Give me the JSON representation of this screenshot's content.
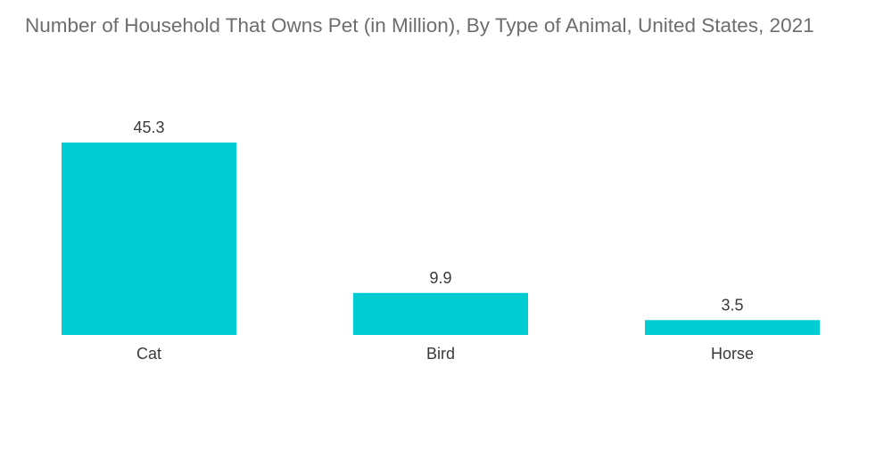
{
  "chart_data": {
    "type": "bar",
    "title": "Number of Household That Owns Pet (in Million), By Type of Animal, United States, 2021",
    "categories": [
      "Cat",
      "Bird",
      "Horse"
    ],
    "values": [
      45.3,
      9.9,
      3.5
    ],
    "data_labels": [
      "45.3",
      "9.9",
      "3.5"
    ],
    "xlabel": "",
    "ylabel": "",
    "ylim": [
      0,
      45.3
    ],
    "grid": false,
    "legend": "none",
    "colors": {
      "bar": "#00cdd1"
    }
  }
}
